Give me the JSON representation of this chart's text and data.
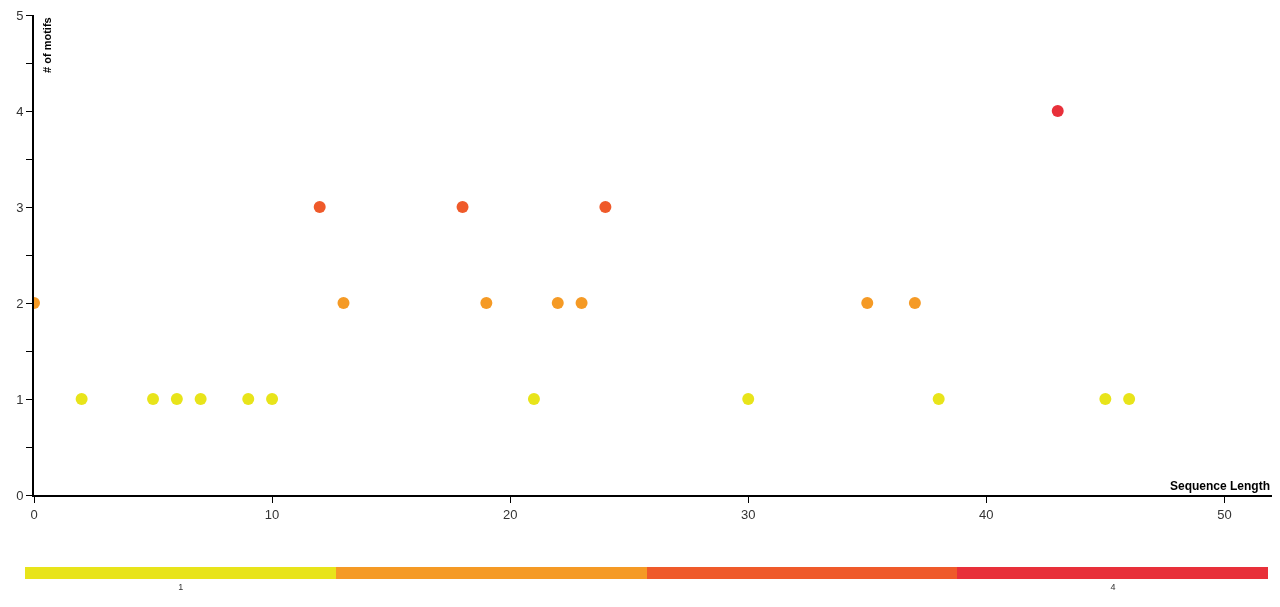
{
  "chart_data": {
    "type": "scatter",
    "xlabel": "Sequence Length",
    "ylabel": "# of motifs",
    "series": [
      {
        "color": "#e8e41a",
        "x": [
          2,
          5,
          6,
          7,
          9,
          10,
          21,
          30,
          38,
          45,
          46
        ],
        "values": [
          1,
          1,
          1,
          1,
          1,
          1,
          1,
          1,
          1,
          1,
          1
        ]
      },
      {
        "color": "#f59a25",
        "x": [
          0,
          13,
          19,
          22,
          23,
          35,
          37
        ],
        "values": [
          2,
          2,
          2,
          2,
          2,
          2,
          2
        ]
      },
      {
        "color": "#ef5a2a",
        "x": [
          12,
          18,
          24
        ],
        "values": [
          3,
          3,
          3
        ]
      },
      {
        "color": "#e8303a",
        "x": [
          43
        ],
        "values": [
          4
        ]
      }
    ],
    "xlim": [
      0,
      52
    ],
    "xticks": [
      0,
      10,
      20,
      30,
      40,
      50
    ],
    "ylim": [
      0,
      5
    ],
    "yticks": [
      0,
      {
        "value": 0.5,
        "label": null
      },
      1,
      {
        "value": 1.5,
        "label": null
      },
      2,
      {
        "value": 2.5,
        "label": null
      },
      3,
      {
        "value": 3.5,
        "label": null
      },
      4,
      {
        "value": 4.5,
        "label": null
      },
      5
    ],
    "clim": [
      0.5,
      4.5
    ],
    "cticks": [
      1,
      {
        "value": 4,
        "label": "4"
      }
    ],
    "marker": "circle"
  }
}
